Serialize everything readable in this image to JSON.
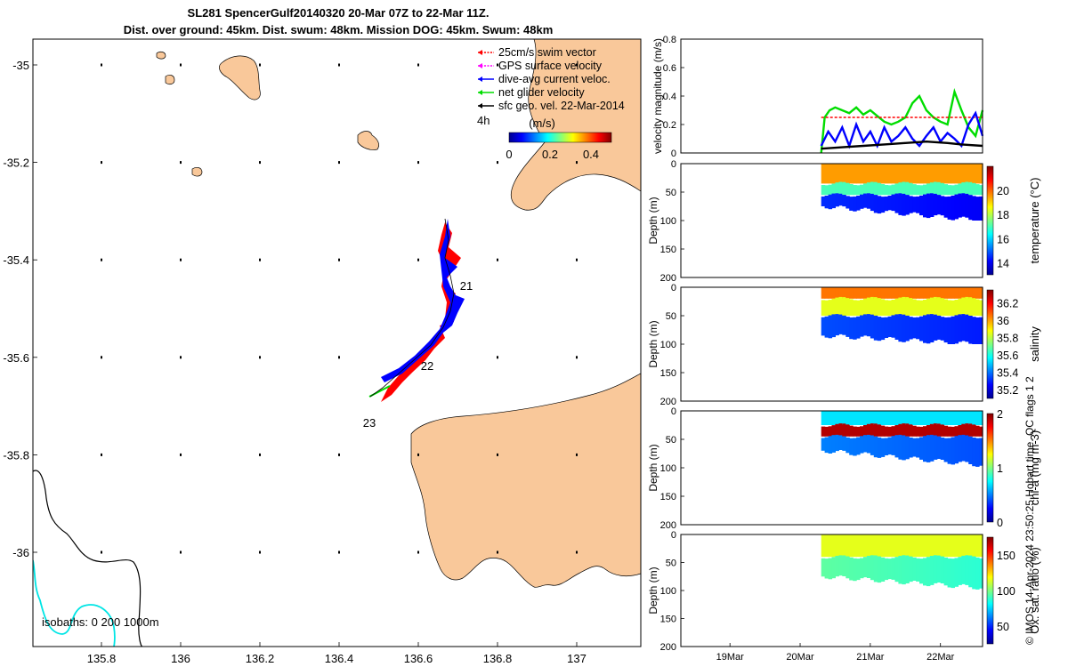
{
  "title": {
    "line1": "SL281 SpencerGulf20140320 20-Mar 07Z to 22-Mar 11Z.",
    "line2": "Dist. over ground: 45km. Dist. swum: 48km. Mission DOG: 45km. Swum: 48km"
  },
  "footer": "© IMOS 14-Apr-2024 23:50:25 Hobart time. QC flags 1  2",
  "colors": {
    "land": "#f9c89a",
    "swim_vector": "#ff0000",
    "gps_velocity": "#ff00ff",
    "dive_avg_current": "#0000ff",
    "net_glider_velocity": "#00dd00",
    "sfc_geo_velocity": "#000000",
    "isobath_200": "#00e5e5"
  },
  "map": {
    "x_ticks": [
      "135.8",
      "136",
      "136.2",
      "136.4",
      "136.6",
      "136.8",
      "137"
    ],
    "y_ticks": [
      "-35",
      "-35.2",
      "-35.4",
      "-35.6",
      "-35.8",
      "-36"
    ],
    "legend": [
      {
        "label": "25cm/s swim vector",
        "color": "#ff0000"
      },
      {
        "label": "GPS surface velocity",
        "color": "#ff00ff"
      },
      {
        "label": "dive-avg current veloc.",
        "color": "#0000ff"
      },
      {
        "label": "net glider velocity",
        "color": "#00dd00"
      },
      {
        "label": "sfc geo. vel. 22-Mar-2014",
        "color": "#000000"
      }
    ],
    "legend_time_label": "4h",
    "colorbar_unit": "(m/s)",
    "colorbar_ticks": [
      "0",
      "0.2",
      "0.4"
    ],
    "colorbar_range": [
      0,
      0.5
    ],
    "day_labels": [
      "21",
      "22",
      "23"
    ],
    "isobaths_label": "isobaths: 0   200  1000m"
  },
  "chart_data": [
    {
      "type": "line",
      "title": "",
      "ylabel": "velocity magnitude (m/s)",
      "ylim": [
        0,
        0.8
      ],
      "y_ticks": [
        "0",
        "0.2",
        "0.4",
        "0.6",
        "0.8"
      ],
      "x_ticks": [
        "19Mar",
        "20Mar",
        "21Mar",
        "22Mar"
      ],
      "x_tick_days": [
        19,
        20,
        21,
        22
      ],
      "xlim_days": [
        18.3,
        22.6
      ],
      "series": [
        {
          "color": "#00dd00",
          "x_days": [
            20.3,
            20.35,
            20.42,
            20.5,
            20.6,
            20.7,
            20.8,
            20.9,
            21.0,
            21.1,
            21.2,
            21.3,
            21.4,
            21.5,
            21.6,
            21.7,
            21.8,
            21.9,
            22.0,
            22.1,
            22.2,
            22.3,
            22.4,
            22.5,
            22.6
          ],
          "values": [
            0.0,
            0.25,
            0.3,
            0.32,
            0.3,
            0.28,
            0.32,
            0.27,
            0.3,
            0.26,
            0.22,
            0.2,
            0.22,
            0.25,
            0.35,
            0.4,
            0.3,
            0.25,
            0.22,
            0.2,
            0.43,
            0.3,
            0.18,
            0.12,
            0.3
          ]
        },
        {
          "color": "#ff0000",
          "x_days": [
            20.3,
            22.6
          ],
          "values": [
            0.25,
            0.25
          ]
        },
        {
          "color": "#0000ff",
          "x_days": [
            20.3,
            20.4,
            20.5,
            20.6,
            20.7,
            20.8,
            20.9,
            21.0,
            21.1,
            21.2,
            21.3,
            21.4,
            21.5,
            21.6,
            21.7,
            21.8,
            21.9,
            22.0,
            22.1,
            22.2,
            22.3,
            22.4,
            22.5,
            22.6
          ],
          "values": [
            0.05,
            0.15,
            0.08,
            0.18,
            0.05,
            0.2,
            0.08,
            0.15,
            0.05,
            0.18,
            0.08,
            0.12,
            0.18,
            0.1,
            0.05,
            0.12,
            0.18,
            0.08,
            0.14,
            0.1,
            0.05,
            0.2,
            0.28,
            0.12
          ]
        },
        {
          "color": "#000000",
          "x_days": [
            20.3,
            20.6,
            20.9,
            21.2,
            21.5,
            21.8,
            22.1,
            22.3,
            22.6
          ],
          "values": [
            0.03,
            0.04,
            0.05,
            0.06,
            0.07,
            0.08,
            0.07,
            0.06,
            0.05
          ]
        }
      ]
    },
    {
      "type": "heatmap",
      "ylabel": "Depth (m)",
      "y_ticks": [
        "0",
        "50",
        "100",
        "150",
        "200"
      ],
      "ylim": [
        0,
        200
      ],
      "x_range_days": [
        20.3,
        22.6
      ],
      "bottom_depth_m": [
        75,
        100
      ],
      "colorbar_label": "temperature (°C)",
      "colorbar_ticks": [
        "14",
        "16",
        "18",
        "20"
      ],
      "colorbar_range": [
        13,
        22
      ],
      "layers": [
        {
          "from_m": 0,
          "to_m": 35,
          "value": 19.5
        },
        {
          "from_m": 35,
          "to_m": 55,
          "value": 17
        },
        {
          "from_m": 55,
          "to_m": 100,
          "value": 14.5
        }
      ]
    },
    {
      "type": "heatmap",
      "ylabel": "Depth (m)",
      "y_ticks": [
        "0",
        "50",
        "100",
        "150",
        "200"
      ],
      "ylim": [
        0,
        200
      ],
      "x_range_days": [
        20.3,
        22.6
      ],
      "bottom_depth_m": [
        85,
        100
      ],
      "colorbar_label": "salinity",
      "colorbar_ticks": [
        "35.2",
        "35.4",
        "35.6",
        "35.8",
        "36",
        "36.2"
      ],
      "colorbar_range": [
        35.1,
        36.35
      ],
      "layers": [
        {
          "from_m": 0,
          "to_m": 20,
          "value": 36.05
        },
        {
          "from_m": 20,
          "to_m": 50,
          "value": 35.85
        },
        {
          "from_m": 50,
          "to_m": 100,
          "value": 35.35
        }
      ]
    },
    {
      "type": "heatmap",
      "ylabel": "Depth (m)",
      "y_ticks": [
        "0",
        "50",
        "100",
        "150",
        "200"
      ],
      "ylim": [
        0,
        200
      ],
      "x_range_days": [
        20.3,
        22.6
      ],
      "bottom_depth_m": [
        70,
        95
      ],
      "colorbar_label": "chl-a (mg m-3)",
      "colorbar_ticks": [
        "0",
        "1",
        "2"
      ],
      "colorbar_range": [
        0,
        2
      ],
      "layers": [
        {
          "from_m": 0,
          "to_m": 25,
          "value": 0.7
        },
        {
          "from_m": 25,
          "to_m": 45,
          "value": 1.9
        },
        {
          "from_m": 45,
          "to_m": 100,
          "value": 0.5
        }
      ]
    },
    {
      "type": "heatmap",
      "ylabel": "Depth (m)",
      "y_ticks": [
        "0",
        "50",
        "100",
        "150",
        "200"
      ],
      "ylim": [
        0,
        200
      ],
      "x_range_days": [
        20.3,
        22.6
      ],
      "bottom_depth_m": [
        75,
        95
      ],
      "colorbar_label": "Ox. sat. ratio (%)",
      "colorbar_ticks": [
        "50",
        "100",
        "150"
      ],
      "colorbar_range": [
        25,
        175
      ],
      "layers": [
        {
          "from_m": 0,
          "to_m": 40,
          "value": 115
        },
        {
          "from_m": 40,
          "to_m": 100,
          "value": 95
        }
      ]
    }
  ]
}
